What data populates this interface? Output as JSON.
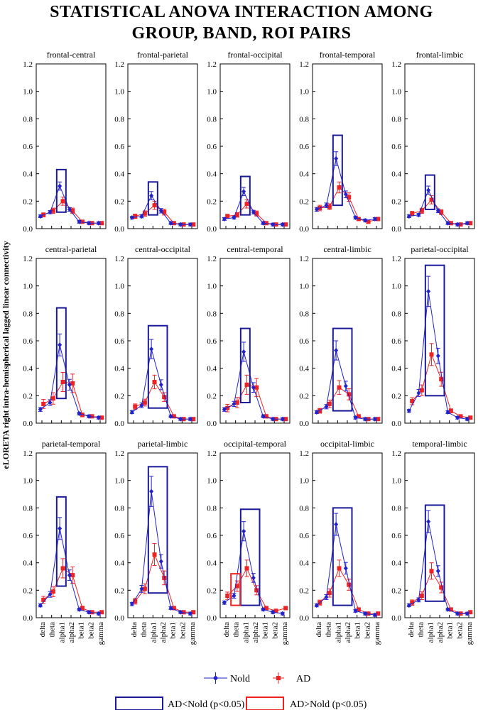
{
  "title_line1": "STATISTICAL ANOVA INTERACTION AMONG",
  "title_line2": "GROUP, BAND, ROI PAIRS",
  "chart_data": {
    "type": "line",
    "ylabel": "eLORETA right intra-hemispherical lagged linear connectivity",
    "ylim": [
      0,
      1.2
    ],
    "yticks": [
      "0.0",
      "0.2",
      "0.4",
      "0.6",
      "0.8",
      "1.0",
      "1.2"
    ],
    "categories": [
      "delta",
      "theta",
      "alpha1",
      "alpha2",
      "beta1",
      "beta2",
      "gamma"
    ],
    "series_names": [
      "Nold",
      "AD"
    ],
    "series_colors": {
      "Nold": "#2222cc",
      "AD": "#ee2222"
    },
    "legend": {
      "nold_label": "Nold",
      "ad_label": "AD",
      "blue_box_label": "AD<Nold (p<0.05)",
      "red_box_label": "AD>Nold (p<0.05)"
    },
    "panels": [
      {
        "name": "frontal-central",
        "nold": [
          0.09,
          0.12,
          0.31,
          0.14,
          0.05,
          0.04,
          0.04
        ],
        "ad": [
          0.1,
          0.13,
          0.2,
          0.13,
          0.05,
          0.04,
          0.04
        ],
        "nold_err": 0.03,
        "ad_err": 0.03,
        "blue_box": {
          "bands": [
            2,
            2
          ],
          "ylim": [
            0.12,
            0.43
          ]
        }
      },
      {
        "name": "frontal-parietal",
        "nold": [
          0.08,
          0.09,
          0.24,
          0.13,
          0.04,
          0.03,
          0.03
        ],
        "ad": [
          0.09,
          0.11,
          0.17,
          0.12,
          0.04,
          0.03,
          0.03
        ],
        "nold_err": 0.03,
        "ad_err": 0.03,
        "blue_box": {
          "bands": [
            2,
            2
          ],
          "ylim": [
            0.1,
            0.34
          ]
        }
      },
      {
        "name": "frontal-occipital",
        "nold": [
          0.07,
          0.08,
          0.27,
          0.12,
          0.04,
          0.03,
          0.03
        ],
        "ad": [
          0.09,
          0.1,
          0.18,
          0.11,
          0.04,
          0.03,
          0.03
        ],
        "nold_err": 0.03,
        "ad_err": 0.03,
        "blue_box": {
          "bands": [
            2,
            2
          ],
          "ylim": [
            0.1,
            0.38
          ]
        }
      },
      {
        "name": "frontal-temporal",
        "nold": [
          0.14,
          0.17,
          0.51,
          0.25,
          0.08,
          0.06,
          0.07
        ],
        "ad": [
          0.15,
          0.16,
          0.3,
          0.23,
          0.07,
          0.05,
          0.07
        ],
        "nold_err": 0.05,
        "ad_err": 0.04,
        "blue_box": {
          "bands": [
            2,
            2
          ],
          "ylim": [
            0.17,
            0.68
          ]
        }
      },
      {
        "name": "frontal-limbic",
        "nold": [
          0.09,
          0.1,
          0.28,
          0.13,
          0.04,
          0.03,
          0.04
        ],
        "ad": [
          0.11,
          0.13,
          0.21,
          0.12,
          0.04,
          0.03,
          0.04
        ],
        "nold_err": 0.03,
        "ad_err": 0.03,
        "blue_box": {
          "bands": [
            2,
            2
          ],
          "ylim": [
            0.14,
            0.39
          ]
        }
      },
      {
        "name": "central-parietal",
        "nold": [
          0.1,
          0.15,
          0.57,
          0.28,
          0.07,
          0.05,
          0.04
        ],
        "ad": [
          0.14,
          0.18,
          0.3,
          0.29,
          0.06,
          0.05,
          0.04
        ],
        "nold_err": 0.08,
        "ad_err": 0.07,
        "blue_box": {
          "bands": [
            2,
            2
          ],
          "ylim": [
            0.18,
            0.84
          ]
        }
      },
      {
        "name": "central-occipital",
        "nold": [
          0.08,
          0.13,
          0.54,
          0.28,
          0.05,
          0.03,
          0.03
        ],
        "ad": [
          0.12,
          0.15,
          0.3,
          0.19,
          0.05,
          0.03,
          0.03
        ],
        "nold_err": 0.07,
        "ad_err": 0.05,
        "blue_box": {
          "bands": [
            2,
            3
          ],
          "ylim": [
            0.11,
            0.71
          ]
        }
      },
      {
        "name": "central-temporal",
        "nold": [
          0.1,
          0.14,
          0.52,
          0.26,
          0.05,
          0.03,
          0.03
        ],
        "ad": [
          0.11,
          0.15,
          0.28,
          0.26,
          0.05,
          0.03,
          0.03
        ],
        "nold_err": 0.07,
        "ad_err": 0.07,
        "blue_box": {
          "bands": [
            2,
            2
          ],
          "ylim": [
            0.15,
            0.69
          ]
        }
      },
      {
        "name": "central-limbic",
        "nold": [
          0.08,
          0.12,
          0.53,
          0.27,
          0.04,
          0.03,
          0.03
        ],
        "ad": [
          0.09,
          0.14,
          0.26,
          0.21,
          0.05,
          0.03,
          0.03
        ],
        "nold_err": 0.07,
        "ad_err": 0.05,
        "blue_box": {
          "bands": [
            2,
            3
          ],
          "ylim": [
            0.09,
            0.69
          ]
        }
      },
      {
        "name": "parietal-occipital",
        "nold": [
          0.09,
          0.22,
          0.96,
          0.49,
          0.08,
          0.04,
          0.03
        ],
        "ad": [
          0.16,
          0.24,
          0.5,
          0.32,
          0.09,
          0.05,
          0.04
        ],
        "nold_err": 0.11,
        "ad_err": 0.08,
        "blue_box": {
          "bands": [
            2,
            3
          ],
          "ylim": [
            0.2,
            1.15
          ]
        }
      },
      {
        "name": "parietal-temporal",
        "nold": [
          0.09,
          0.17,
          0.65,
          0.31,
          0.06,
          0.04,
          0.03
        ],
        "ad": [
          0.13,
          0.19,
          0.36,
          0.31,
          0.07,
          0.04,
          0.04
        ],
        "nold_err": 0.08,
        "ad_err": 0.07,
        "blue_box": {
          "bands": [
            2,
            2
          ],
          "ylim": [
            0.23,
            0.88
          ]
        }
      },
      {
        "name": "parietal-limbic",
        "nold": [
          0.1,
          0.21,
          0.92,
          0.41,
          0.07,
          0.04,
          0.03
        ],
        "ad": [
          0.12,
          0.21,
          0.46,
          0.29,
          0.07,
          0.04,
          0.04
        ],
        "nold_err": 0.11,
        "ad_err": 0.08,
        "blue_box": {
          "bands": [
            2,
            3
          ],
          "ylim": [
            0.18,
            1.1
          ]
        }
      },
      {
        "name": "occipital-temporal",
        "nold": [
          0.11,
          0.16,
          0.63,
          0.29,
          0.06,
          0.04,
          0.03
        ],
        "ad": [
          0.16,
          0.23,
          0.36,
          0.2,
          0.07,
          0.05,
          0.07
        ],
        "nold_err": 0.07,
        "ad_err": 0.06,
        "blue_box": {
          "bands": [
            2,
            3
          ],
          "ylim": [
            0.09,
            0.79
          ]
        },
        "red_box": {
          "bands": [
            1,
            1
          ],
          "ylim": [
            0.09,
            0.32
          ]
        }
      },
      {
        "name": "occipital-limbic",
        "nold": [
          0.09,
          0.15,
          0.68,
          0.36,
          0.05,
          0.03,
          0.02
        ],
        "ad": [
          0.11,
          0.18,
          0.36,
          0.24,
          0.06,
          0.03,
          0.03
        ],
        "nold_err": 0.08,
        "ad_err": 0.06,
        "blue_box": {
          "bands": [
            2,
            3
          ],
          "ylim": [
            0.09,
            0.8
          ]
        }
      },
      {
        "name": "temporal-limbic",
        "nold": [
          0.09,
          0.13,
          0.7,
          0.34,
          0.06,
          0.03,
          0.03
        ],
        "ad": [
          0.11,
          0.16,
          0.34,
          0.22,
          0.06,
          0.03,
          0.04
        ],
        "nold_err": 0.08,
        "ad_err": 0.06,
        "blue_box": {
          "bands": [
            2,
            3
          ],
          "ylim": [
            0.12,
            0.82
          ]
        }
      }
    ]
  }
}
